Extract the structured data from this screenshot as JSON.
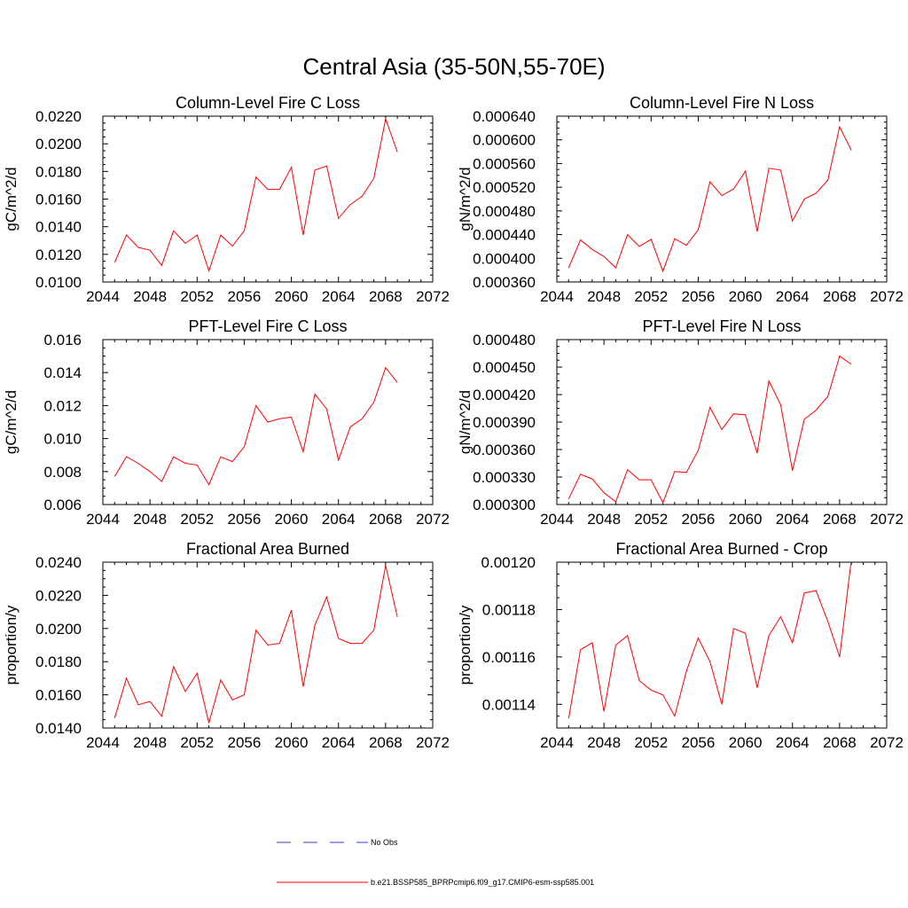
{
  "title": "Central Asia (35-50N,55-70E)",
  "chart_data": [
    {
      "type": "line",
      "title": "Column-Level Fire C Loss",
      "ylabel": "gC/m^2/d",
      "xlim": [
        2044,
        2072
      ],
      "ylim": [
        0.01,
        0.022
      ],
      "xticks": [
        2044,
        2048,
        2052,
        2056,
        2060,
        2064,
        2068,
        2072
      ],
      "yticks": [
        0.01,
        0.012,
        0.014,
        0.016,
        0.018,
        0.02,
        0.022
      ],
      "ytick_labels": [
        "0.0100",
        "0.0120",
        "0.0140",
        "0.0160",
        "0.0180",
        "0.0200",
        "0.0220"
      ],
      "color": "#ff0000",
      "x": [
        2045,
        2046,
        2047,
        2048,
        2049,
        2050,
        2051,
        2052,
        2053,
        2054,
        2055,
        2056,
        2057,
        2058,
        2059,
        2060,
        2061,
        2062,
        2063,
        2064,
        2065,
        2066,
        2067,
        2068,
        2069
      ],
      "y": [
        0.0114,
        0.0134,
        0.0125,
        0.0123,
        0.0112,
        0.0137,
        0.0128,
        0.0134,
        0.0108,
        0.0134,
        0.0126,
        0.0137,
        0.0176,
        0.0167,
        0.0167,
        0.0183,
        0.0134,
        0.0181,
        0.0184,
        0.0146,
        0.0156,
        0.0162,
        0.0175,
        0.0218,
        0.0194
      ]
    },
    {
      "type": "line",
      "title": "Column-Level Fire N Loss",
      "ylabel": "gN/m^2/d",
      "xlim": [
        2044,
        2072
      ],
      "ylim": [
        0.00036,
        0.00064
      ],
      "xticks": [
        2044,
        2048,
        2052,
        2056,
        2060,
        2064,
        2068,
        2072
      ],
      "yticks": [
        0.00036,
        0.0004,
        0.00044,
        0.00048,
        0.00052,
        0.00056,
        0.0006,
        0.00064
      ],
      "ytick_labels": [
        "0.000360",
        "0.000400",
        "0.000440",
        "0.000480",
        "0.000520",
        "0.000560",
        "0.000600",
        "0.000640"
      ],
      "color": "#ff0000",
      "x": [
        2045,
        2046,
        2047,
        2048,
        2049,
        2050,
        2051,
        2052,
        2053,
        2054,
        2055,
        2056,
        2057,
        2058,
        2059,
        2060,
        2061,
        2062,
        2063,
        2064,
        2065,
        2066,
        2067,
        2068,
        2069
      ],
      "y": [
        0.000384,
        0.000431,
        0.000415,
        0.000403,
        0.000384,
        0.00044,
        0.00042,
        0.000432,
        0.000378,
        0.000433,
        0.000422,
        0.000448,
        0.000529,
        0.000506,
        0.000517,
        0.000547,
        0.000445,
        0.000552,
        0.000549,
        0.000463,
        0.0005,
        0.00051,
        0.000532,
        0.000622,
        0.000582
      ]
    },
    {
      "type": "line",
      "title": "PFT-Level Fire C Loss",
      "ylabel": "gC/m^2/d",
      "xlim": [
        2044,
        2072
      ],
      "ylim": [
        0.006,
        0.016
      ],
      "xticks": [
        2044,
        2048,
        2052,
        2056,
        2060,
        2064,
        2068,
        2072
      ],
      "yticks": [
        0.006,
        0.008,
        0.01,
        0.012,
        0.014,
        0.016
      ],
      "ytick_labels": [
        "0.006",
        "0.008",
        "0.010",
        "0.012",
        "0.014",
        "0.016"
      ],
      "color": "#ff0000",
      "x": [
        2045,
        2046,
        2047,
        2048,
        2049,
        2050,
        2051,
        2052,
        2053,
        2054,
        2055,
        2056,
        2057,
        2058,
        2059,
        2060,
        2061,
        2062,
        2063,
        2064,
        2065,
        2066,
        2067,
        2068,
        2069
      ],
      "y": [
        0.0077,
        0.0089,
        0.0085,
        0.008,
        0.0074,
        0.0089,
        0.0085,
        0.0084,
        0.0072,
        0.0089,
        0.0086,
        0.0095,
        0.012,
        0.011,
        0.0112,
        0.0113,
        0.0092,
        0.0127,
        0.0118,
        0.0087,
        0.0107,
        0.0112,
        0.0122,
        0.0143,
        0.0134
      ]
    },
    {
      "type": "line",
      "title": "PFT-Level Fire N Loss",
      "ylabel": "gN/m^2/d",
      "xlim": [
        2044,
        2072
      ],
      "ylim": [
        0.0003,
        0.00048
      ],
      "xticks": [
        2044,
        2048,
        2052,
        2056,
        2060,
        2064,
        2068,
        2072
      ],
      "yticks": [
        0.0003,
        0.00033,
        0.00036,
        0.00039,
        0.00042,
        0.00045,
        0.00048
      ],
      "ytick_labels": [
        "0.000300",
        "0.000330",
        "0.000360",
        "0.000390",
        "0.000420",
        "0.000450",
        "0.000480"
      ],
      "color": "#ff0000",
      "x": [
        2045,
        2046,
        2047,
        2048,
        2049,
        2050,
        2051,
        2052,
        2053,
        2054,
        2055,
        2056,
        2057,
        2058,
        2059,
        2060,
        2061,
        2062,
        2063,
        2064,
        2065,
        2066,
        2067,
        2068,
        2069
      ],
      "y": [
        0.000306,
        0.000333,
        0.000328,
        0.000313,
        0.000303,
        0.000338,
        0.000327,
        0.000327,
        0.000302,
        0.000336,
        0.000335,
        0.000359,
        0.000406,
        0.000382,
        0.000399,
        0.000398,
        0.000356,
        0.000435,
        0.000409,
        0.000337,
        0.000393,
        0.000403,
        0.000418,
        0.000462,
        0.000453
      ]
    },
    {
      "type": "line",
      "title": "Fractional Area Burned",
      "ylabel": "proportion/y",
      "xlim": [
        2044,
        2072
      ],
      "ylim": [
        0.014,
        0.024
      ],
      "xticks": [
        2044,
        2048,
        2052,
        2056,
        2060,
        2064,
        2068,
        2072
      ],
      "yticks": [
        0.014,
        0.016,
        0.018,
        0.02,
        0.022,
        0.024
      ],
      "ytick_labels": [
        "0.0140",
        "0.0160",
        "0.0180",
        "0.0200",
        "0.0220",
        "0.0240"
      ],
      "color": "#ff0000",
      "x": [
        2045,
        2046,
        2047,
        2048,
        2049,
        2050,
        2051,
        2052,
        2053,
        2054,
        2055,
        2056,
        2057,
        2058,
        2059,
        2060,
        2061,
        2062,
        2063,
        2064,
        2065,
        2066,
        2067,
        2068,
        2069
      ],
      "y": [
        0.0146,
        0.017,
        0.0154,
        0.0156,
        0.0147,
        0.0177,
        0.0162,
        0.0173,
        0.0143,
        0.0169,
        0.0157,
        0.016,
        0.0199,
        0.019,
        0.0191,
        0.0211,
        0.0165,
        0.0202,
        0.0219,
        0.0194,
        0.0191,
        0.0191,
        0.0199,
        0.0238,
        0.0207
      ]
    },
    {
      "type": "line",
      "title": "Fractional Area Burned - Crop",
      "ylabel": "proportion/y",
      "xlim": [
        2044,
        2072
      ],
      "ylim": [
        0.00113,
        0.0012
      ],
      "xticks": [
        2044,
        2048,
        2052,
        2056,
        2060,
        2064,
        2068,
        2072
      ],
      "yticks": [
        0.00114,
        0.00116,
        0.00118,
        0.0012
      ],
      "ytick_labels": [
        "0.00114",
        "0.00116",
        "0.00118",
        "0.00120"
      ],
      "color": "#ff0000",
      "x": [
        2045,
        2046,
        2047,
        2048,
        2049,
        2050,
        2051,
        2052,
        2053,
        2054,
        2055,
        2056,
        2057,
        2058,
        2059,
        2060,
        2061,
        2062,
        2063,
        2064,
        2065,
        2066,
        2067,
        2068,
        2069
      ],
      "y": [
        0.001134,
        0.001163,
        0.001166,
        0.001137,
        0.001165,
        0.001169,
        0.00115,
        0.001146,
        0.001144,
        0.001135,
        0.001154,
        0.001168,
        0.001158,
        0.00114,
        0.001172,
        0.00117,
        0.001147,
        0.001169,
        0.001177,
        0.001166,
        0.001187,
        0.001188,
        0.001175,
        0.00116,
        0.001201
      ]
    }
  ],
  "legend": {
    "items": [
      {
        "label": "No Obs",
        "style": "dashed",
        "color": "#3b3bcc"
      },
      {
        "label": "b.e21.BSSP585_BPRPcmip6.f09_g17.CMIP6-esm-ssp585.001",
        "style": "solid",
        "color": "#ff0000"
      }
    ]
  }
}
